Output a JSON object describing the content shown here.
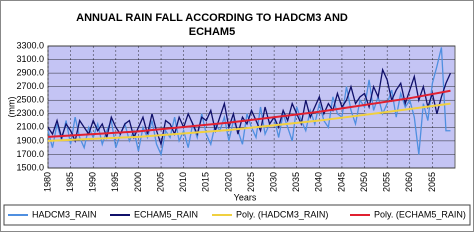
{
  "chart_data": {
    "type": "line",
    "title": [
      "ANNUAL RAIN FALL ACCORDING TO HADCM3 AND",
      "ECHAM5"
    ],
    "ylabel": "(mm)",
    "xlabel": "Years",
    "x": [
      1980,
      1981,
      1982,
      1983,
      1984,
      1985,
      1986,
      1987,
      1988,
      1989,
      1990,
      1991,
      1992,
      1993,
      1994,
      1995,
      1996,
      1997,
      1998,
      1999,
      2000,
      2001,
      2002,
      2003,
      2004,
      2005,
      2006,
      2007,
      2008,
      2009,
      2010,
      2011,
      2012,
      2013,
      2014,
      2015,
      2016,
      2017,
      2018,
      2019,
      2020,
      2021,
      2022,
      2023,
      2024,
      2025,
      2026,
      2027,
      2028,
      2029,
      2030,
      2031,
      2032,
      2033,
      2034,
      2035,
      2036,
      2037,
      2038,
      2039,
      2040,
      2041,
      2042,
      2043,
      2044,
      2045,
      2046,
      2047,
      2048,
      2049,
      2050,
      2051,
      2052,
      2053,
      2054,
      2055,
      2056,
      2057,
      2058,
      2059,
      2060,
      2061,
      2062,
      2063,
      2064,
      2065,
      2066,
      2067,
      2068,
      2069
    ],
    "xlim": [
      1980,
      2070
    ],
    "xticks": [
      1980,
      1985,
      1990,
      1995,
      2000,
      2005,
      2010,
      2015,
      2020,
      2025,
      2030,
      2035,
      2040,
      2045,
      2050,
      2055,
      2060,
      2065
    ],
    "ylim": [
      1500,
      3300
    ],
    "yticks": [
      {
        "value": 1500,
        "label": "1500.0"
      },
      {
        "value": 1700,
        "label": "1700.0"
      },
      {
        "value": 1900,
        "label": "1900.0"
      },
      {
        "value": 2100,
        "label": "2100.0"
      },
      {
        "value": 2300,
        "label": "2300.0"
      },
      {
        "value": 2500,
        "label": "2500.0"
      },
      {
        "value": 2700,
        "label": "2700.0"
      },
      {
        "value": 2900,
        "label": "2900.0"
      },
      {
        "value": 3100,
        "label": "3100.0"
      },
      {
        "value": 3300,
        "label": "3300.0"
      }
    ],
    "grid": true,
    "background": "#c4c4f4",
    "legend": "bottom",
    "series": [
      {
        "name": "HADCM3_RAIN",
        "color": "#4f8fe0",
        "width": 1.3,
        "values": [
          2050,
          1800,
          2150,
          1900,
          2200,
          1850,
          2250,
          1950,
          1800,
          2100,
          1950,
          2150,
          1850,
          2050,
          2200,
          1800,
          2000,
          2150,
          1900,
          2050,
          1750,
          2100,
          1950,
          2200,
          1850,
          1700,
          2050,
          1950,
          2250,
          1900,
          2050,
          1800,
          2150,
          1950,
          2300,
          2000,
          1850,
          2150,
          2050,
          2250,
          1900,
          2200,
          2050,
          1850,
          2300,
          2100,
          1950,
          2400,
          2000,
          2150,
          2250,
          1950,
          2300,
          2100,
          1900,
          2400,
          2200,
          2050,
          2350,
          2150,
          2450,
          2200,
          2100,
          2550,
          2300,
          2250,
          2700,
          2350,
          2150,
          2500,
          2400,
          2800,
          2350,
          2550,
          2300,
          2450,
          2650,
          2250,
          2600,
          2400,
          2500,
          2250,
          1700,
          2450,
          2200,
          2750,
          3000,
          3280,
          2050,
          2050
        ]
      },
      {
        "name": "ECHAM5_RAIN",
        "color": "#10106a",
        "width": 1.3,
        "values": [
          2100,
          2000,
          2200,
          1950,
          2150,
          2050,
          1900,
          2200,
          2100,
          2000,
          2200,
          2050,
          2150,
          1950,
          2250,
          2100,
          2000,
          2150,
          2200,
          1950,
          2100,
          2250,
          2000,
          2300,
          2050,
          1850,
          2200,
          2150,
          2000,
          2250,
          2100,
          2300,
          2150,
          2000,
          2250,
          2200,
          2350,
          2050,
          2250,
          2450,
          2100,
          2300,
          2000,
          2250,
          2150,
          2350,
          2200,
          2050,
          2400,
          2150,
          2250,
          2100,
          2350,
          2200,
          2450,
          2300,
          2150,
          2500,
          2250,
          2400,
          2550,
          2300,
          2450,
          2350,
          2600,
          2400,
          2500,
          2700,
          2450,
          2550,
          2600,
          2400,
          2700,
          2550,
          2950,
          2800,
          2500,
          2650,
          2750,
          2450,
          2650,
          2850,
          2500,
          2700,
          2400,
          2600,
          2300,
          2550,
          2750,
          2900
        ]
      },
      {
        "name": "Poly. (HADCM3_RAIN)",
        "color": "#f0d040",
        "width": 2,
        "x": [
          1980,
          2000,
          2020,
          2040,
          2060,
          2069
        ],
        "values": [
          1900,
          1960,
          2060,
          2200,
          2370,
          2450
        ]
      },
      {
        "name": "Poly. (ECHAM5_RAIN)",
        "color": "#e02030",
        "width": 2,
        "x": [
          1980,
          2000,
          2020,
          2040,
          2060,
          2069
        ],
        "values": [
          1960,
          2040,
          2170,
          2330,
          2530,
          2640
        ]
      }
    ]
  }
}
